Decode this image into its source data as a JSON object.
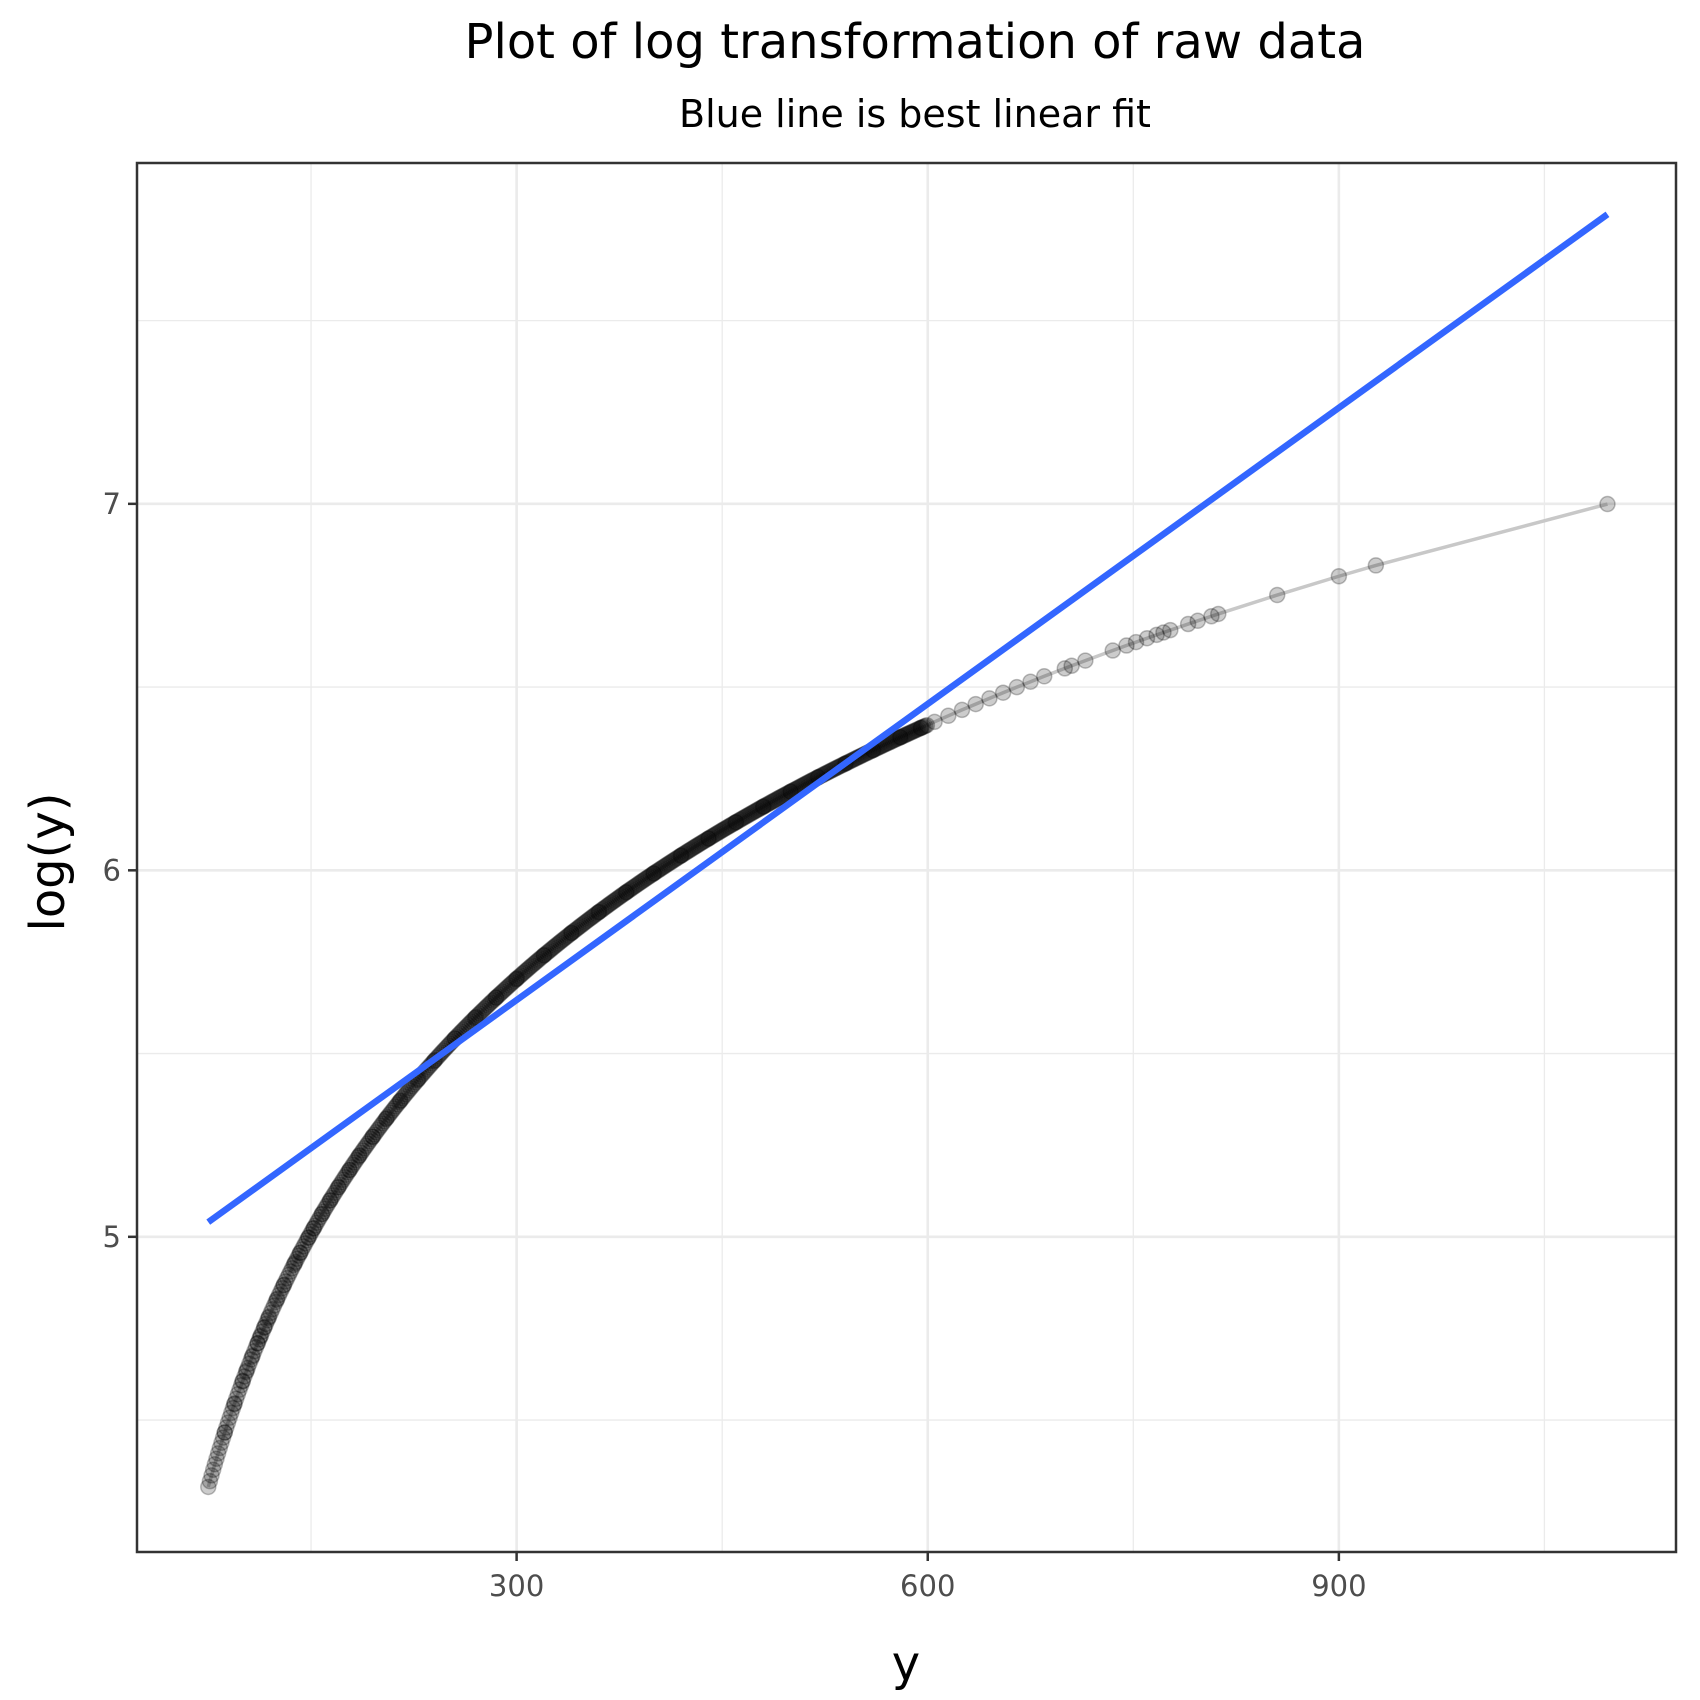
{
  "chart_data": {
    "type": "scatter",
    "title": "Plot of log transformation of raw data",
    "subtitle": "Blue line is best linear fit",
    "xlabel": "y",
    "ylabel": "log(y)",
    "xlim": [
      23,
      1146
    ],
    "ylim": [
      4.14,
      7.93
    ],
    "x_ticks": [
      300,
      600,
      900
    ],
    "y_ticks": [
      5,
      6,
      7
    ],
    "x_minor_gridlines": [
      150,
      450,
      750,
      1050
    ],
    "y_minor_gridlines": [
      4.5,
      5.5,
      6.5,
      7.5
    ],
    "grid": true,
    "legend": "none",
    "series": [
      {
        "name": "log(y) vs y (points, connected)",
        "kind": "points+line",
        "color": "#000000",
        "alpha": 0.2,
        "function": "log(x)",
        "x": [
          75,
          87,
          94,
          100,
          103,
          107,
          111,
          113,
          116,
          119,
          125,
          130,
          138,
          142,
          148,
          152,
          158,
          164,
          170,
          178,
          185,
          195,
          205,
          215,
          228,
          240,
          255,
          270,
          285,
          300,
          320,
          340,
          360,
          380,
          400,
          420,
          440,
          460,
          480,
          500,
          520,
          540,
          560,
          580,
          595,
          605,
          615,
          625,
          635,
          645,
          655,
          665,
          675,
          685,
          700,
          705,
          715,
          735,
          745,
          752,
          760,
          767,
          772,
          777,
          790,
          797,
          807,
          812,
          855,
          900,
          927,
          1096
        ]
      },
      {
        "name": "Best linear fit",
        "kind": "line",
        "color": "#3366FF",
        "x": [
          75,
          1096
        ],
        "y": [
          5.04,
          7.79
        ]
      }
    ]
  },
  "title": "Plot of log transformation of raw data",
  "subtitle": "Blue line is best linear fit",
  "axes": {
    "x": {
      "title": "y",
      "ticks": [
        "300",
        "600",
        "900"
      ]
    },
    "y": {
      "title": "log(y)",
      "ticks": [
        "5",
        "6",
        "7"
      ]
    }
  },
  "colors": {
    "fit_line": "#3366FF",
    "points": "#000000",
    "connector": "#c8c8c8",
    "grid": "#ebebeb",
    "panel_border": "#333333"
  }
}
